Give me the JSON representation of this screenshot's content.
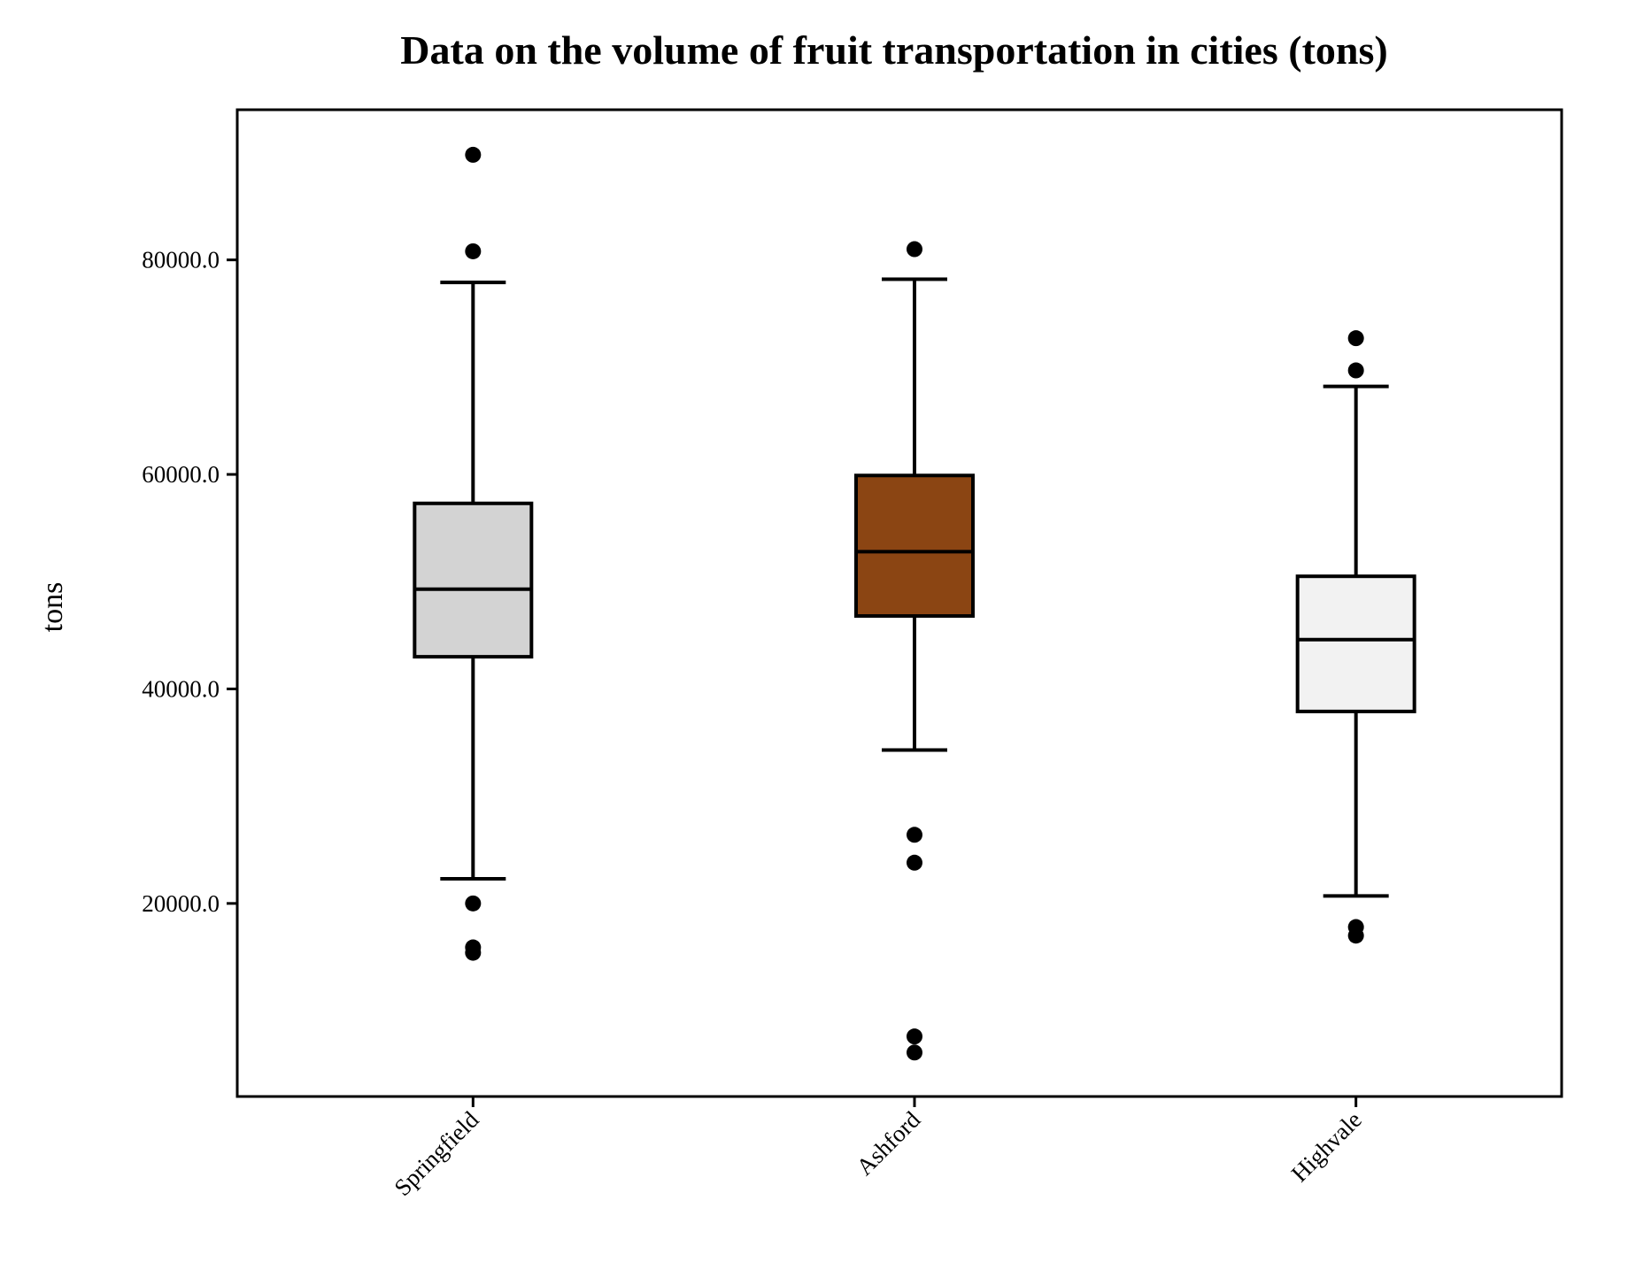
{
  "chart_data": {
    "type": "box",
    "title": "Data on the volume of fruit transportation in cities (tons)",
    "xlabel": "",
    "ylabel": "tons",
    "ylim": [
      2000,
      94000
    ],
    "yticks": [
      20000,
      40000,
      60000,
      80000
    ],
    "ytick_labels": [
      "20000.0",
      "40000.0",
      "60000.0",
      "80000.0"
    ],
    "grid": false,
    "categories": [
      "Springfield",
      "Ashford",
      "Highvale"
    ],
    "boxes": [
      {
        "category": "Springfield",
        "color": "#d3d3d3",
        "whisker_low": 22300,
        "q1": 43000,
        "median": 49300,
        "q3": 57300,
        "whisker_high": 77900,
        "outliers": [
          89800,
          80800,
          20000,
          15900,
          15400
        ]
      },
      {
        "category": "Ashford",
        "color": "#8b4513",
        "whisker_low": 34300,
        "q1": 46800,
        "median": 52800,
        "q3": 59900,
        "whisker_high": 78200,
        "outliers": [
          81000,
          26400,
          23800,
          7600,
          6100
        ]
      },
      {
        "category": "Highvale",
        "color": "#f2f2f2",
        "whisker_low": 20700,
        "q1": 37900,
        "median": 44600,
        "q3": 50500,
        "whisker_high": 68200,
        "outliers": [
          72700,
          69700,
          17800,
          17000
        ]
      }
    ]
  }
}
